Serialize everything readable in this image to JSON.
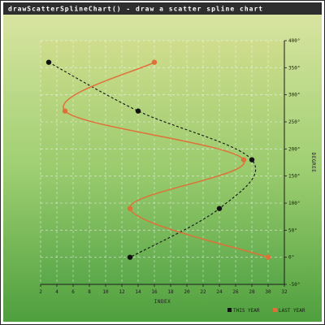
{
  "chart_data": {
    "type": "scatter",
    "title": "drawScatterSplineChart() - draw a scatter spline chart",
    "xlabel": "INDEX",
    "ylabel": "DEGREE",
    "xlim": [
      2,
      32
    ],
    "ylim": [
      -50,
      400
    ],
    "x_ticks": [
      2,
      4,
      6,
      8,
      10,
      12,
      14,
      16,
      18,
      20,
      22,
      24,
      26,
      28,
      30,
      32
    ],
    "y_ticks": [
      -50,
      0,
      50,
      100,
      150,
      200,
      250,
      300,
      350,
      400
    ],
    "y_tick_suffix": "°",
    "y_axis_position": "right",
    "grid": true,
    "legend_position": "bottom-right",
    "series": [
      {
        "name": "THIS YEAR",
        "color": "#111111",
        "line_style": "dashed",
        "points": [
          [
            3,
            360
          ],
          [
            14,
            270
          ],
          [
            28,
            180
          ],
          [
            24,
            90
          ],
          [
            13,
            0
          ]
        ]
      },
      {
        "name": "LAST YEAR",
        "color": "#e0703a",
        "line_style": "solid",
        "points": [
          [
            16,
            360
          ],
          [
            5,
            270
          ],
          [
            27,
            180
          ],
          [
            13,
            90
          ],
          [
            30,
            0
          ]
        ]
      }
    ]
  }
}
